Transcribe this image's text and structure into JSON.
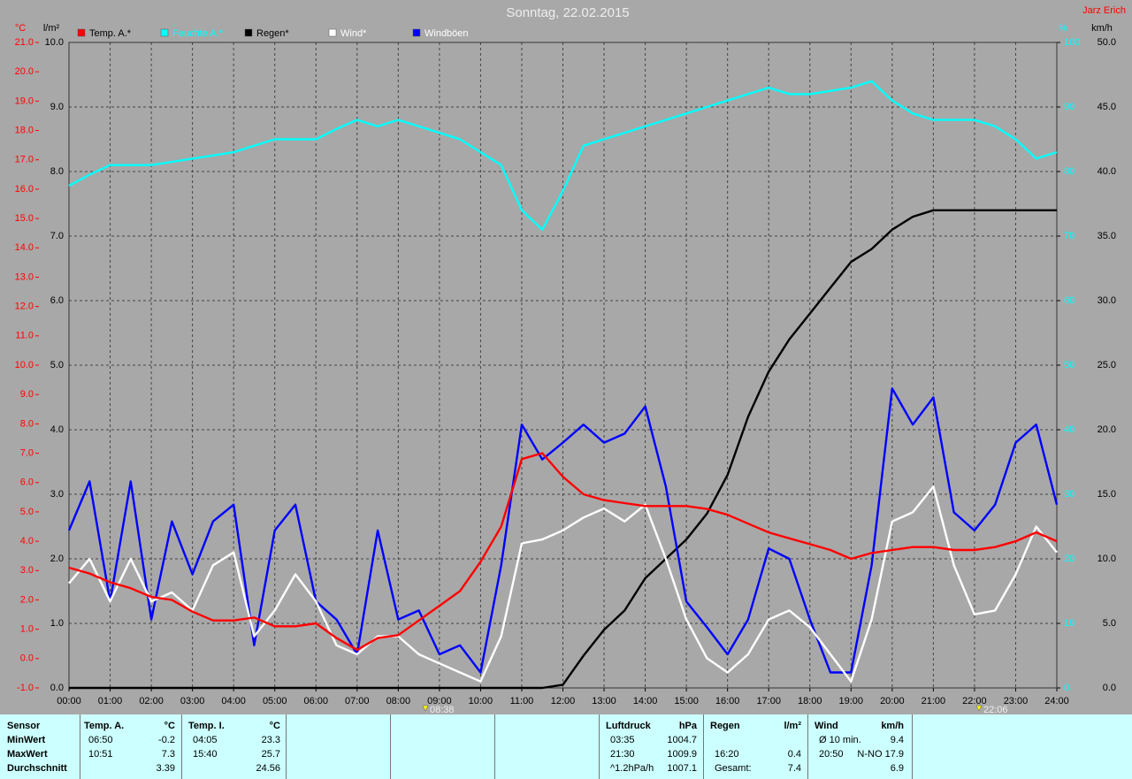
{
  "chart_data": {
    "type": "line",
    "title": "Sonntag, 22.02.2015",
    "author": "Jarz Erich",
    "grid": true,
    "y_unit": "°C",
    "y2_unit": "l/m²",
    "y3_unit": "%",
    "y4_unit": "km/h",
    "x": [
      0,
      0.5,
      1,
      1.5,
      2,
      2.5,
      3,
      3.5,
      4,
      4.5,
      5,
      5.5,
      6,
      6.5,
      7,
      7.5,
      8,
      8.5,
      9,
      9.5,
      10,
      10.5,
      11,
      11.5,
      12,
      12.5,
      13,
      13.5,
      14,
      14.5,
      15,
      15.5,
      16,
      16.5,
      17,
      17.5,
      18,
      18.5,
      19,
      19.5,
      20,
      20.5,
      21,
      21.5,
      22,
      22.5,
      23,
      23.5,
      24
    ],
    "xlim": [
      0,
      24
    ],
    "xticks": [
      {
        "value": 0,
        "label": "00:00"
      },
      {
        "value": 1,
        "label": "01:00"
      },
      {
        "value": 2,
        "label": "02:00"
      },
      {
        "value": 3,
        "label": "03:00"
      },
      {
        "value": 4,
        "label": "04:00"
      },
      {
        "value": 5,
        "label": "05:00"
      },
      {
        "value": 6,
        "label": "06:00"
      },
      {
        "value": 7,
        "label": "07:00"
      },
      {
        "value": 8,
        "label": "08:00"
      },
      {
        "value": 9,
        "label": "09:00"
      },
      {
        "value": 10,
        "label": "10:00"
      },
      {
        "value": 11,
        "label": "11:00"
      },
      {
        "value": 12,
        "label": "12:00"
      },
      {
        "value": 13,
        "label": "13:00"
      },
      {
        "value": 14,
        "label": "14:00"
      },
      {
        "value": 15,
        "label": "15:00"
      },
      {
        "value": 16,
        "label": "16:00"
      },
      {
        "value": 17,
        "label": "17:00"
      },
      {
        "value": 18,
        "label": "18:00"
      },
      {
        "value": 19,
        "label": "19:00"
      },
      {
        "value": 20,
        "label": "20:00"
      },
      {
        "value": 21,
        "label": "21:00"
      },
      {
        "value": 22,
        "label": "22:00"
      },
      {
        "value": 23,
        "label": "23:00"
      },
      {
        "value": 24,
        "label": "24:00"
      }
    ],
    "ylim": [
      -1,
      21
    ],
    "yticks": [
      {
        "value": -1,
        "label": "-1.0"
      },
      {
        "value": 0,
        "label": "0.0"
      },
      {
        "value": 1,
        "label": "1.0"
      },
      {
        "value": 2,
        "label": "2.0"
      },
      {
        "value": 3,
        "label": "3.0"
      },
      {
        "value": 4,
        "label": "4.0"
      },
      {
        "value": 5,
        "label": "5.0"
      },
      {
        "value": 6,
        "label": "6.0"
      },
      {
        "value": 7,
        "label": "7.0"
      },
      {
        "value": 8,
        "label": "8.0"
      },
      {
        "value": 9,
        "label": "9.0"
      },
      {
        "value": 10,
        "label": "10.0"
      },
      {
        "value": 11,
        "label": "11.0"
      },
      {
        "value": 12,
        "label": "12.0"
      },
      {
        "value": 13,
        "label": "13.0"
      },
      {
        "value": 14,
        "label": "14.0"
      },
      {
        "value": 15,
        "label": "15.0"
      },
      {
        "value": 16,
        "label": "16.0"
      },
      {
        "value": 17,
        "label": "17.0"
      },
      {
        "value": 18,
        "label": "18.0"
      },
      {
        "value": 19,
        "label": "19.0"
      },
      {
        "value": 20,
        "label": "20.0"
      },
      {
        "value": 21,
        "label": "21.0"
      }
    ],
    "y2lim": [
      0,
      10
    ],
    "y2ticks": [
      {
        "value": 0,
        "label": "0.0"
      },
      {
        "value": 1,
        "label": "1.0"
      },
      {
        "value": 2,
        "label": "2.0"
      },
      {
        "value": 3,
        "label": "3.0"
      },
      {
        "value": 4,
        "label": "4.0"
      },
      {
        "value": 5,
        "label": "5.0"
      },
      {
        "value": 6,
        "label": "6.0"
      },
      {
        "value": 7,
        "label": "7.0"
      },
      {
        "value": 8,
        "label": "8.0"
      },
      {
        "value": 9,
        "label": "9.0"
      },
      {
        "value": 10,
        "label": "10.0"
      }
    ],
    "y3lim": [
      0,
      100
    ],
    "y3ticks": [
      0,
      10,
      20,
      30,
      40,
      50,
      60,
      70,
      80,
      90,
      100
    ],
    "y4lim": [
      0,
      50
    ],
    "y4ticks": [
      {
        "value": 0,
        "label": "0.0"
      },
      {
        "value": 5,
        "label": "5.0"
      },
      {
        "value": 10,
        "label": "10.0"
      },
      {
        "value": 15,
        "label": "15.0"
      },
      {
        "value": 20,
        "label": "20.0"
      },
      {
        "value": 25,
        "label": "25.0"
      },
      {
        "value": 30,
        "label": "30.0"
      },
      {
        "value": 35,
        "label": "35.0"
      },
      {
        "value": 40,
        "label": "40.0"
      },
      {
        "value": 45,
        "label": "45.0"
      },
      {
        "value": 50,
        "label": "50.0"
      }
    ],
    "series": [
      {
        "name": "Temp. A.*",
        "color": "#ff0000",
        "axis": "y",
        "values": [
          3.1,
          2.9,
          2.6,
          2.4,
          2.1,
          2.0,
          1.6,
          1.3,
          1.3,
          1.4,
          1.1,
          1.1,
          1.2,
          0.7,
          0.3,
          0.7,
          0.8,
          1.3,
          1.8,
          2.3,
          3.3,
          4.5,
          6.8,
          7.0,
          6.2,
          5.6,
          5.4,
          5.3,
          5.2,
          5.2,
          5.2,
          5.1,
          4.9,
          4.6,
          4.3,
          4.1,
          3.9,
          3.7,
          3.4,
          3.6,
          3.7,
          3.8,
          3.8,
          3.7,
          3.7,
          3.8,
          4.0,
          4.3,
          4.0
        ]
      },
      {
        "name": "Feuchte A.*",
        "color": "#00ffff",
        "axis": "y3",
        "values": [
          77.8,
          79.5,
          81,
          81,
          81,
          81.5,
          82,
          82.5,
          83,
          84,
          85,
          85,
          85,
          86.6,
          88,
          87,
          88,
          87,
          86,
          85,
          83,
          81,
          74,
          71,
          77,
          84,
          85,
          86,
          87,
          88,
          89,
          90,
          91,
          92,
          93,
          92,
          92,
          92.5,
          93,
          94,
          91,
          89,
          88,
          88,
          88,
          87,
          85,
          82,
          83
        ]
      },
      {
        "name": "Regen*",
        "color": "#000000",
        "axis": "y2",
        "values": [
          0,
          0,
          0,
          0,
          0,
          0,
          0,
          0,
          0,
          0,
          0,
          0,
          0,
          0,
          0,
          0,
          0,
          0,
          0,
          0,
          0,
          0,
          0,
          0,
          0.05,
          0.5,
          0.9,
          1.2,
          1.7,
          2.0,
          2.3,
          2.7,
          3.3,
          4.2,
          4.9,
          5.4,
          5.8,
          6.2,
          6.6,
          6.8,
          7.1,
          7.3,
          7.4,
          7.4,
          7.4,
          7.4,
          7.4,
          7.4,
          7.4
        ]
      },
      {
        "name": "Wind*",
        "color": "#ffffff",
        "axis": "y4",
        "values": [
          8.1,
          10,
          6.7,
          10,
          6.7,
          7.4,
          6,
          9.5,
          10.5,
          4,
          6,
          8.8,
          6.7,
          3.3,
          2.6,
          4,
          4,
          2.6,
          1.9,
          1.2,
          0.5,
          4,
          11.2,
          11.5,
          12.2,
          13.2,
          13.9,
          12.9,
          14.2,
          10,
          5.3,
          2.3,
          1.2,
          2.6,
          5.3,
          6,
          4.7,
          2.6,
          0.5,
          5.3,
          12.9,
          13.6,
          15.6,
          9.5,
          5.7,
          6,
          8.8,
          12.5,
          10.5
        ]
      },
      {
        "name": "Windböen",
        "color": "#0000ff",
        "axis": "y4",
        "values": [
          12.2,
          16,
          6.7,
          16,
          5.3,
          12.9,
          8.8,
          12.9,
          14.2,
          3.3,
          12.2,
          14.2,
          6.7,
          5.3,
          2.6,
          12.2,
          5.3,
          6,
          2.6,
          3.3,
          1.2,
          9.5,
          20.4,
          17.7,
          19,
          20.4,
          19,
          19.7,
          21.8,
          15.6,
          6.7,
          4.7,
          2.6,
          5.3,
          10.8,
          10,
          5.3,
          1.2,
          1.2,
          9.5,
          23.2,
          20.4,
          22.5,
          13.6,
          12.2,
          14.2,
          19,
          20.4,
          14.2
        ]
      }
    ],
    "annotations": [
      {
        "label": "08:38"
      },
      {
        "label": "22:06"
      }
    ]
  },
  "stats": {
    "sensor": {
      "header": "Sensor",
      "rows": [
        "MinWert",
        "MaxWert",
        "Durchschnitt"
      ]
    },
    "temp_a": {
      "header": "Temp. A.",
      "unit": "°C",
      "rows": [
        [
          "06:50",
          "-0.2"
        ],
        [
          "10:51",
          "7.3"
        ],
        [
          "3.39"
        ]
      ]
    },
    "temp_i": {
      "header": "Temp. I.",
      "unit": "°C",
      "rows": [
        [
          "04:05",
          "23.3"
        ],
        [
          "15:40",
          "25.7"
        ],
        [
          "24.56"
        ]
      ]
    },
    "pressure": {
      "header": "Luftdruck",
      "unit": "hPa",
      "rows": [
        [
          "03:35",
          "1004.7"
        ],
        [
          "21:30",
          "1009.9"
        ],
        [
          "^1.2hPa/h",
          "1007.1"
        ]
      ]
    },
    "rain": {
      "header": "Regen",
      "unit": "l/m²",
      "rows": [
        [
          "16:20",
          "0.4"
        ],
        [
          "Gesamt:",
          "7.4"
        ]
      ]
    },
    "wind": {
      "header": "Wind",
      "unit": "km/h",
      "rows": [
        [
          "Ø 10 min.",
          "9.4"
        ],
        [
          "20:50",
          "N-NO 17.9"
        ],
        [
          "6.9"
        ]
      ]
    }
  }
}
